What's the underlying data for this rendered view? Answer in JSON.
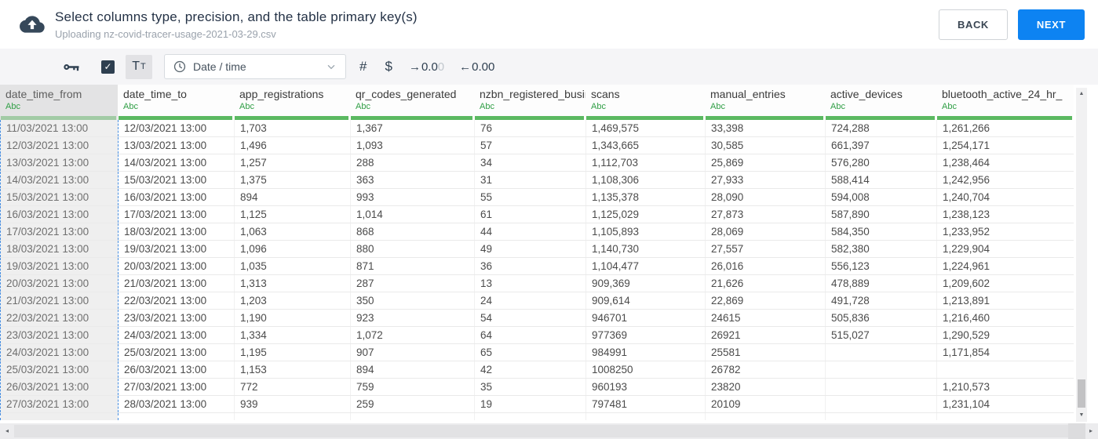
{
  "header": {
    "title": "Select columns type, precision, and the table primary key(s)",
    "subtitle": "Uploading nz-covid-tracer-usage-2021-03-29.csv",
    "back_label": "BACK",
    "next_label": "NEXT"
  },
  "toolbar": {
    "primary_key_icon": "key-icon",
    "checkbox_checked": true,
    "check_glyph": "✓",
    "text_type_large": "T",
    "text_type_small": "T",
    "type_dropdown_value": "Date / time",
    "number_symbol": "#",
    "currency_symbol": "$",
    "increase_decimal": {
      "arrow": "→",
      "value": "0.0",
      "ghost": "0"
    },
    "decrease_decimal": {
      "arrow": "←",
      "value": "0.00"
    }
  },
  "table": {
    "columns": [
      {
        "name": "date_time_from",
        "type_label": "Abc",
        "selected": true
      },
      {
        "name": "date_time_to",
        "type_label": "Abc",
        "selected": false
      },
      {
        "name": "app_registrations",
        "type_label": "Abc",
        "selected": false
      },
      {
        "name": "qr_codes_generated",
        "type_label": "Abc",
        "selected": false
      },
      {
        "name": "nzbn_registered_busine",
        "type_label": "Abc",
        "selected": false
      },
      {
        "name": "scans",
        "type_label": "Abc",
        "selected": false
      },
      {
        "name": "manual_entries",
        "type_label": "Abc",
        "selected": false
      },
      {
        "name": "active_devices",
        "type_label": "Abc",
        "selected": false
      },
      {
        "name": "bluetooth_active_24_hr_",
        "type_label": "Abc",
        "selected": false
      }
    ],
    "rows": [
      [
        "11/03/2021 13:00",
        "12/03/2021 13:00",
        "1,703",
        "1,367",
        "76",
        "1,469,575",
        "33,398",
        "724,288",
        "1,261,266"
      ],
      [
        "12/03/2021 13:00",
        "13/03/2021 13:00",
        "1,496",
        "1,093",
        "57",
        "1,343,665",
        "30,585",
        "661,397",
        "1,254,171"
      ],
      [
        "13/03/2021 13:00",
        "14/03/2021 13:00",
        "1,257",
        "288",
        "34",
        "1,112,703",
        "25,869",
        "576,280",
        "1,238,464"
      ],
      [
        "14/03/2021 13:00",
        "15/03/2021 13:00",
        "1,375",
        "363",
        "31",
        "1,108,306",
        "27,933",
        "588,414",
        "1,242,956"
      ],
      [
        "15/03/2021 13:00",
        "16/03/2021 13:00",
        "894",
        "993",
        "55",
        "1,135,378",
        "28,090",
        "594,008",
        "1,240,704"
      ],
      [
        "16/03/2021 13:00",
        "17/03/2021 13:00",
        "1,125",
        "1,014",
        "61",
        "1,125,029",
        "27,873",
        "587,890",
        "1,238,123"
      ],
      [
        "17/03/2021 13:00",
        "18/03/2021 13:00",
        "1,063",
        "868",
        "44",
        "1,105,893",
        "28,069",
        "584,350",
        "1,233,952"
      ],
      [
        "18/03/2021 13:00",
        "19/03/2021 13:00",
        "1,096",
        "880",
        "49",
        "1,140,730",
        "27,557",
        "582,380",
        "1,229,904"
      ],
      [
        "19/03/2021 13:00",
        "20/03/2021 13:00",
        "1,035",
        "871",
        "36",
        "1,104,477",
        "26,016",
        "556,123",
        "1,224,961"
      ],
      [
        "20/03/2021 13:00",
        "21/03/2021 13:00",
        "1,313",
        "287",
        "13",
        "909,369",
        "21,626",
        "478,889",
        "1,209,602"
      ],
      [
        "21/03/2021 13:00",
        "22/03/2021 13:00",
        "1,203",
        "350",
        "24",
        "909,614",
        "22,869",
        "491,728",
        "1,213,891"
      ],
      [
        "22/03/2021 13:00",
        "23/03/2021 13:00",
        "1,190",
        "923",
        "54",
        "946701",
        "24615",
        "505,836",
        "1,216,460"
      ],
      [
        "23/03/2021 13:00",
        "24/03/2021 13:00",
        "1,334",
        "1,072",
        "64",
        "977369",
        "26921",
        "515,027",
        "1,290,529"
      ],
      [
        "24/03/2021 13:00",
        "25/03/2021 13:00",
        "1,195",
        "907",
        "65",
        "984991",
        "25581",
        "",
        "1,171,854"
      ],
      [
        "25/03/2021 13:00",
        "26/03/2021 13:00",
        "1,153",
        "894",
        "42",
        "1008250",
        "26782",
        "",
        ""
      ],
      [
        "26/03/2021 13:00",
        "27/03/2021 13:00",
        "772",
        "759",
        "35",
        "960193",
        "23820",
        "",
        "1,210,573"
      ],
      [
        "27/03/2021 13:00",
        "28/03/2021 13:00",
        "939",
        "259",
        "19",
        "797481",
        "20109",
        "",
        "1,231,104"
      ]
    ]
  },
  "scrollbars": {
    "up": "▲",
    "down": "▼",
    "left": "◂",
    "right": "▸"
  },
  "colors": {
    "accent_blue": "#0d83f2",
    "type_green": "#2f9e44",
    "underline_green": "#5bb961",
    "selected_underline_green": "#a2cba5",
    "selection_dashed_blue": "#4a90e2",
    "dark_navy": "#2e3f50",
    "toolbar_gray": "#f5f5f7",
    "selected_column_gray": "#efefef"
  }
}
